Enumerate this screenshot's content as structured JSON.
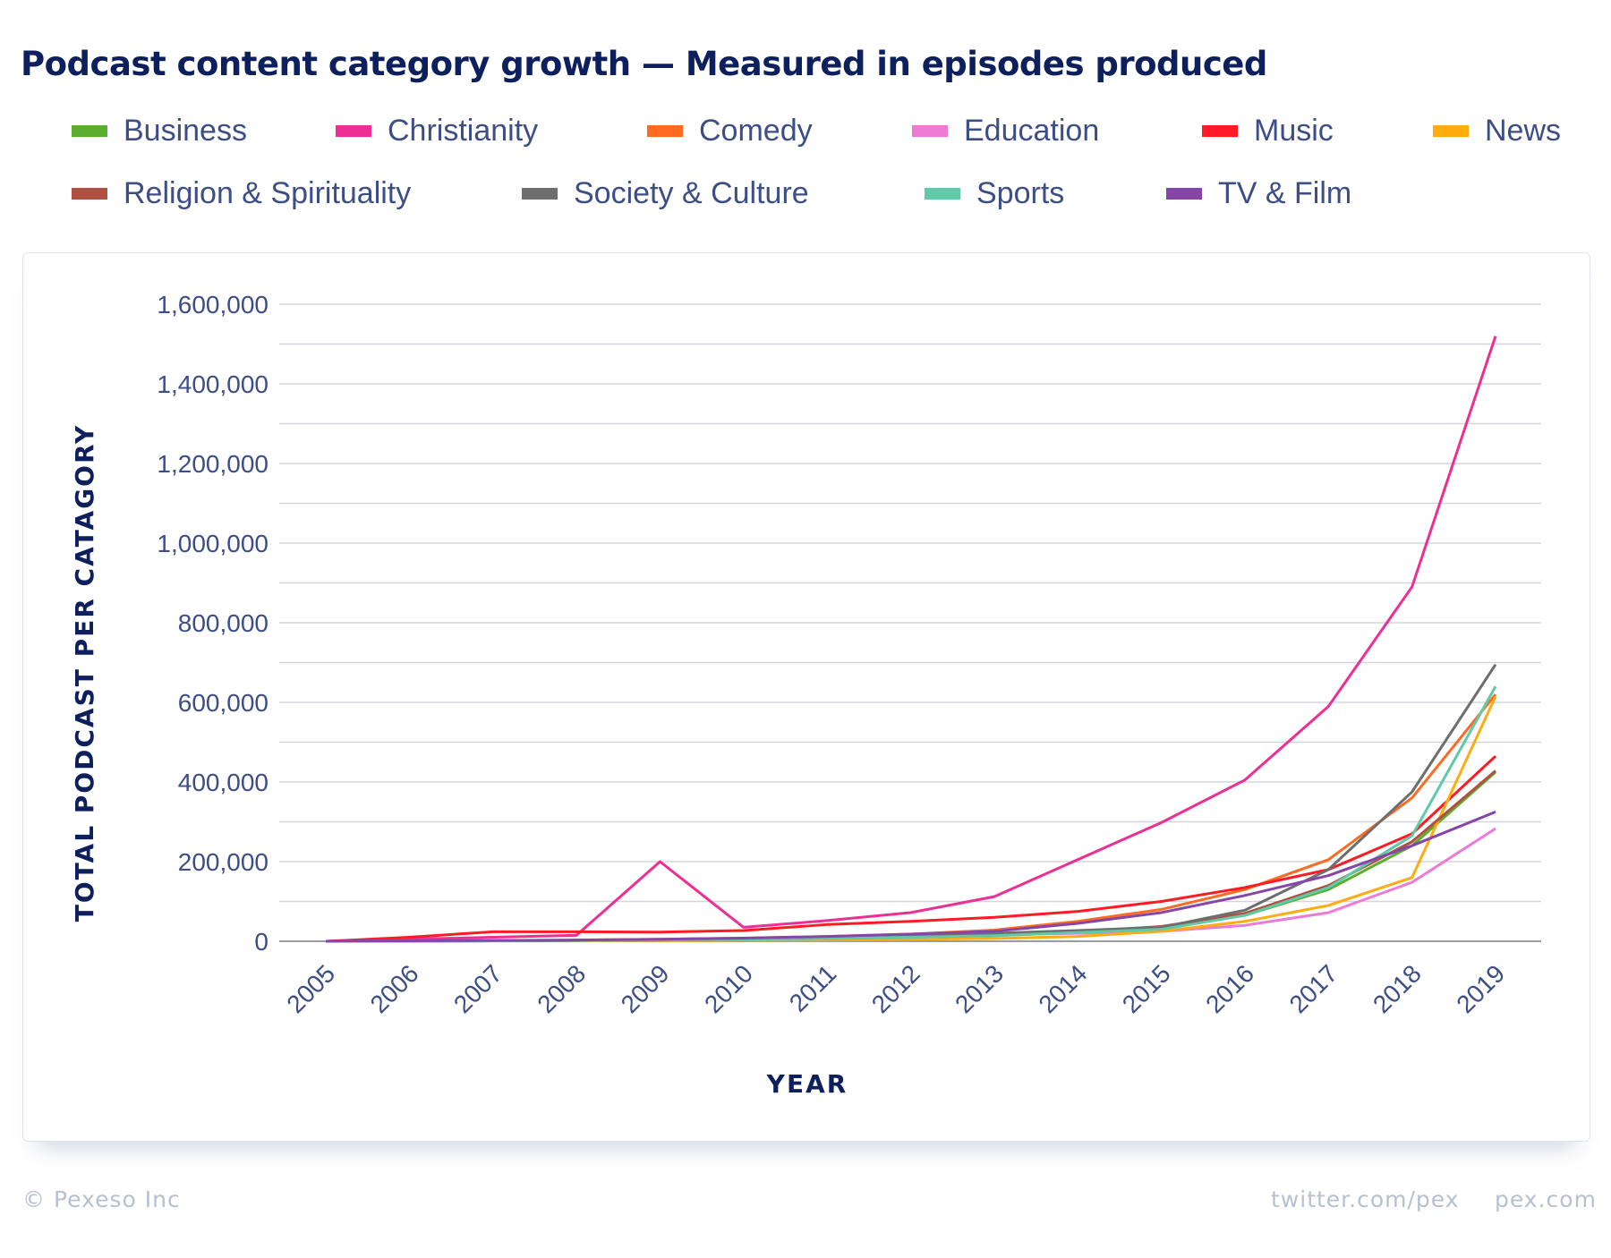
{
  "chart_data": {
    "type": "line",
    "title": "Podcast content category growth — Measured in episodes produced",
    "xlabel": "YEAR",
    "ylabel": "TOTAL PODCAST PER CATAGORY",
    "ylim": [
      0,
      1600000
    ],
    "yticks": [
      "0",
      "200,000",
      "400,000",
      "600,000",
      "800,000",
      "1,000,000",
      "1,200,000",
      "1,400,000",
      "1,600,000"
    ],
    "grid": true,
    "legend_position": "top",
    "x": [
      "2005",
      "2006",
      "2007",
      "2008",
      "2009",
      "2010",
      "2011",
      "2012",
      "2013",
      "2014",
      "2015",
      "2016",
      "2017",
      "2018",
      "2019"
    ],
    "series": [
      {
        "name": "Business",
        "color": "#5aae2e",
        "values": [
          0,
          500,
          1000,
          2000,
          3000,
          5000,
          7000,
          9000,
          14000,
          22000,
          35000,
          65000,
          130000,
          240000,
          425000
        ]
      },
      {
        "name": "Christianity",
        "color": "#ee2e93",
        "values": [
          0,
          5000,
          10000,
          15000,
          200000,
          35000,
          52000,
          72000,
          112000,
          205000,
          298000,
          405000,
          590000,
          890000,
          1520000
        ]
      },
      {
        "name": "Comedy",
        "color": "#ff6a22",
        "values": [
          0,
          1000,
          2000,
          3000,
          5000,
          8000,
          12000,
          18000,
          28000,
          50000,
          80000,
          130000,
          205000,
          360000,
          620000
        ]
      },
      {
        "name": "Education",
        "color": "#ee7ad8",
        "values": [
          0,
          500,
          1000,
          2000,
          4000,
          5000,
          8000,
          12000,
          16000,
          20000,
          25000,
          40000,
          72000,
          148000,
          283000
        ]
      },
      {
        "name": "Music",
        "color": "#ff1a24",
        "values": [
          0,
          10000,
          24000,
          24000,
          23000,
          27000,
          42000,
          50000,
          60000,
          75000,
          100000,
          135000,
          180000,
          270000,
          465000
        ]
      },
      {
        "name": "News",
        "color": "#ffac10",
        "values": [
          0,
          300,
          600,
          1000,
          1500,
          2500,
          3000,
          5000,
          7000,
          12000,
          25000,
          50000,
          90000,
          160000,
          615000
        ]
      },
      {
        "name": "Religion & Spirituality",
        "color": "#b05040",
        "values": [
          0,
          500,
          1000,
          2000,
          3000,
          5000,
          7000,
          10000,
          15000,
          24000,
          37000,
          70000,
          140000,
          250000,
          428000
        ]
      },
      {
        "name": "Society & Culture",
        "color": "#6e6e6e",
        "values": [
          0,
          500,
          1000,
          2000,
          4000,
          7000,
          10000,
          15000,
          20000,
          27000,
          35000,
          78000,
          180000,
          375000,
          695000
        ]
      },
      {
        "name": "Sports",
        "color": "#5ecaa8",
        "values": [
          0,
          500,
          1000,
          2000,
          3000,
          5000,
          7000,
          10000,
          14000,
          22000,
          30000,
          65000,
          135000,
          265000,
          640000
        ]
      },
      {
        "name": "TV & Film",
        "color": "#8645a8",
        "values": [
          0,
          1000,
          2000,
          3000,
          5000,
          8000,
          12000,
          18000,
          25000,
          45000,
          72000,
          115000,
          165000,
          240000,
          325000
        ]
      }
    ]
  },
  "footer": {
    "copyright": "© Pexeso Inc",
    "twitter": "twitter.com/pex",
    "site": "pex.com"
  }
}
